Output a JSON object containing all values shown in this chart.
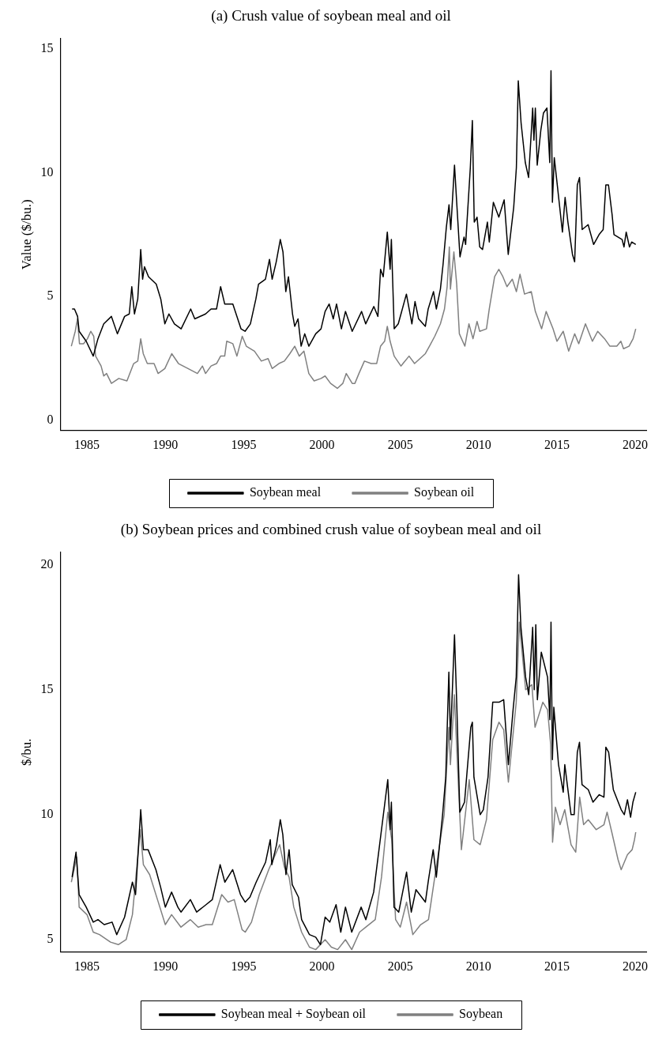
{
  "chart_data": [
    {
      "type": "line",
      "title": "(a) Crush value of soybean meal and oil",
      "ylabel": "Value ($/bu.)",
      "xlim": [
        1983.3,
        2020.7
      ],
      "xticks": [
        1985,
        1990,
        1995,
        2000,
        2005,
        2010,
        2015,
        2020
      ],
      "ylim": [
        -0.4,
        15.4
      ],
      "yticks": [
        0,
        5,
        10,
        15
      ],
      "grid": false,
      "legend": "bottom",
      "line_style": "solid",
      "marker": "none",
      "series": [
        {
          "name": "Soybean meal",
          "color": "#000000",
          "x": [
            1984.05,
            1984.2,
            1984.4,
            1984.5,
            1984.95,
            1985.4,
            1985.7,
            1986.07,
            1986.56,
            1986.94,
            1987.4,
            1987.7,
            1987.86,
            1988.03,
            1988.24,
            1988.43,
            1988.55,
            1988.67,
            1988.93,
            1989.42,
            1989.71,
            1989.97,
            1990.23,
            1990.58,
            1991.01,
            1991.62,
            1991.88,
            1992.57,
            1992.92,
            1993.27,
            1993.53,
            1993.79,
            1994.31,
            1994.83,
            1995.09,
            1995.43,
            1995.78,
            1995.95,
            1996.39,
            1996.65,
            1996.82,
            1997.08,
            1997.34,
            1997.51,
            1997.69,
            1997.86,
            1998.12,
            1998.26,
            1998.47,
            1998.67,
            1998.9,
            1999.16,
            1999.6,
            1999.94,
            2000.2,
            2000.46,
            2000.72,
            2000.93,
            2001.24,
            2001.5,
            2001.93,
            2002.53,
            2002.79,
            2003.31,
            2003.57,
            2003.74,
            2003.91,
            2004.17,
            2004.35,
            2004.43,
            2004.61,
            2004.87,
            2005.39,
            2005.74,
            2005.94,
            2006.17,
            2006.6,
            2006.78,
            2007.12,
            2007.3,
            2007.56,
            2007.73,
            2007.94,
            2008.11,
            2008.22,
            2008.46,
            2008.6,
            2008.81,
            2009.07,
            2009.17,
            2009.47,
            2009.6,
            2009.72,
            2009.9,
            2010.07,
            2010.25,
            2010.56,
            2010.68,
            2010.94,
            2011.29,
            2011.63,
            2011.89,
            2012.24,
            2012.41,
            2012.53,
            2012.71,
            2012.98,
            2013.19,
            2013.45,
            2013.53,
            2013.62,
            2013.74,
            2013.97,
            2014.14,
            2014.36,
            2014.54,
            2014.62,
            2014.71,
            2014.83,
            2015.09,
            2015.35,
            2015.52,
            2015.7,
            2015.99,
            2016.13,
            2016.3,
            2016.44,
            2016.61,
            2016.99,
            2017.34,
            2017.69,
            2017.95,
            2018.12,
            2018.29,
            2018.52,
            2018.64,
            2019.16,
            2019.28,
            2019.42,
            2019.63,
            2019.77,
            2020.03
          ],
          "values": [
            4.5,
            4.5,
            4.2,
            3.6,
            3.2,
            2.6,
            3.3,
            3.9,
            4.2,
            3.5,
            4.2,
            4.3,
            5.4,
            4.3,
            4.9,
            6.9,
            5.7,
            6.2,
            5.8,
            5.5,
            4.9,
            3.9,
            4.3,
            3.9,
            3.7,
            4.5,
            4.1,
            4.3,
            4.5,
            4.5,
            5.4,
            4.7,
            4.7,
            3.7,
            3.6,
            3.9,
            4.9,
            5.5,
            5.7,
            6.5,
            5.7,
            6.4,
            7.3,
            6.8,
            5.2,
            5.8,
            4.3,
            3.8,
            4.1,
            3.0,
            3.5,
            3.0,
            3.5,
            3.7,
            4.4,
            4.7,
            4.1,
            4.7,
            3.7,
            4.4,
            3.6,
            4.4,
            3.9,
            4.6,
            4.2,
            6.1,
            5.8,
            7.6,
            6.1,
            7.3,
            3.7,
            3.9,
            5.1,
            3.9,
            4.8,
            4.1,
            3.8,
            4.5,
            5.2,
            4.5,
            5.3,
            6.3,
            7.8,
            8.7,
            7.7,
            10.3,
            8.8,
            6.6,
            7.4,
            7.1,
            10.2,
            12.1,
            8.0,
            8.2,
            7.0,
            6.9,
            8.0,
            7.2,
            8.8,
            8.2,
            8.9,
            6.7,
            8.6,
            10.2,
            13.7,
            12.0,
            10.4,
            9.8,
            12.6,
            11.3,
            12.6,
            10.3,
            11.7,
            12.4,
            12.6,
            10.4,
            14.1,
            8.8,
            10.6,
            9.1,
            7.6,
            9.0,
            8.0,
            6.7,
            6.4,
            9.5,
            9.8,
            7.7,
            7.9,
            7.1,
            7.5,
            7.7,
            9.5,
            9.5,
            8.3,
            7.5,
            7.3,
            7.0,
            7.6,
            7.0,
            7.2,
            7.1
          ]
        },
        {
          "name": "Soybean oil",
          "color": "#808080",
          "x": [
            1984.0,
            1984.25,
            1984.39,
            1984.52,
            1984.78,
            1985.03,
            1985.24,
            1985.43,
            1985.55,
            1985.9,
            1986.07,
            1986.25,
            1986.56,
            1987.03,
            1987.55,
            1987.98,
            1988.24,
            1988.43,
            1988.59,
            1988.85,
            1989.28,
            1989.54,
            1989.97,
            1990.41,
            1990.84,
            1991.45,
            1992.05,
            1992.37,
            1992.57,
            1992.92,
            1993.27,
            1993.53,
            1993.79,
            1993.92,
            1994.31,
            1994.57,
            1994.91,
            1995.17,
            1995.69,
            1996.13,
            1996.56,
            1996.82,
            1997.25,
            1997.6,
            1997.95,
            1998.26,
            1998.55,
            1998.85,
            1999.16,
            1999.5,
            1999.94,
            2000.2,
            2000.55,
            2000.98,
            2001.33,
            2001.55,
            2001.93,
            2002.1,
            2002.36,
            2002.71,
            2003.14,
            2003.49,
            2003.74,
            2004.0,
            2004.17,
            2004.35,
            2004.61,
            2005.04,
            2005.56,
            2005.91,
            2006.6,
            2006.86,
            2007.2,
            2007.56,
            2007.82,
            2007.99,
            2008.13,
            2008.2,
            2008.42,
            2008.6,
            2008.77,
            2009.12,
            2009.38,
            2009.64,
            2009.9,
            2010.07,
            2010.5,
            2010.68,
            2011.02,
            2011.29,
            2011.55,
            2011.81,
            2012.15,
            2012.41,
            2012.64,
            2012.93,
            2013.36,
            2013.62,
            2014.02,
            2014.31,
            2014.75,
            2015.0,
            2015.4,
            2015.75,
            2016.13,
            2016.39,
            2016.82,
            2017.26,
            2017.6,
            2018.04,
            2018.38,
            2018.82,
            2019.08,
            2019.25,
            2019.6,
            2019.86,
            2020.03
          ],
          "values": [
            3.0,
            3.6,
            4.1,
            3.1,
            3.1,
            3.3,
            3.6,
            3.4,
            2.6,
            2.2,
            1.8,
            1.9,
            1.5,
            1.7,
            1.6,
            2.3,
            2.4,
            3.3,
            2.7,
            2.3,
            2.3,
            1.9,
            2.1,
            2.7,
            2.3,
            2.1,
            1.9,
            2.2,
            1.9,
            2.2,
            2.3,
            2.6,
            2.6,
            3.2,
            3.1,
            2.6,
            3.4,
            3.0,
            2.8,
            2.4,
            2.5,
            2.1,
            2.3,
            2.4,
            2.7,
            3.0,
            2.6,
            2.8,
            1.9,
            1.6,
            1.7,
            1.8,
            1.5,
            1.3,
            1.5,
            1.9,
            1.5,
            1.5,
            1.9,
            2.4,
            2.3,
            2.3,
            3.0,
            3.2,
            3.8,
            3.2,
            2.6,
            2.2,
            2.6,
            2.3,
            2.7,
            3.0,
            3.4,
            3.9,
            4.5,
            5.4,
            7.0,
            5.3,
            6.8,
            5.5,
            3.5,
            3.0,
            3.9,
            3.3,
            4.0,
            3.6,
            3.7,
            4.5,
            5.8,
            6.1,
            5.8,
            5.4,
            5.7,
            5.2,
            5.9,
            5.1,
            5.2,
            4.4,
            3.7,
            4.4,
            3.7,
            3.2,
            3.6,
            2.8,
            3.5,
            3.1,
            3.9,
            3.2,
            3.6,
            3.3,
            3.0,
            3.0,
            3.2,
            2.9,
            3.0,
            3.3,
            3.7
          ]
        }
      ]
    },
    {
      "type": "line",
      "title": "(b) Soybean prices and combined crush value of soybean meal and oil",
      "ylabel": "$/bu.",
      "xlim": [
        1983.3,
        2020.7
      ],
      "xticks": [
        1985,
        1990,
        1995,
        2000,
        2005,
        2010,
        2015,
        2020
      ],
      "ylim": [
        4.5,
        20.5
      ],
      "yticks": [
        5,
        10,
        15,
        20
      ],
      "grid": false,
      "legend": "bottom",
      "line_style": "solid",
      "marker": "none",
      "series": [
        {
          "name": "Soybean meal + Soybean oil",
          "color": "#000000",
          "x": [
            1984.05,
            1984.3,
            1984.5,
            1984.95,
            1985.4,
            1985.7,
            1986.1,
            1986.6,
            1986.9,
            1987.4,
            1987.9,
            1988.1,
            1988.43,
            1988.6,
            1988.9,
            1989.4,
            1989.7,
            1990.0,
            1990.4,
            1990.8,
            1991.0,
            1991.6,
            1992.0,
            1992.6,
            1993.0,
            1993.5,
            1993.8,
            1994.3,
            1994.8,
            1995.1,
            1995.4,
            1995.8,
            1996.4,
            1996.7,
            1996.8,
            1997.1,
            1997.34,
            1997.5,
            1997.7,
            1997.9,
            1998.1,
            1998.5,
            1998.7,
            1999.2,
            1999.6,
            1999.9,
            2000.2,
            2000.5,
            2000.9,
            2001.2,
            2001.5,
            2001.9,
            2002.5,
            2002.8,
            2003.3,
            2003.7,
            2004.2,
            2004.35,
            2004.43,
            2004.6,
            2004.9,
            2005.4,
            2005.7,
            2006.0,
            2006.6,
            2006.8,
            2007.1,
            2007.3,
            2007.7,
            2007.9,
            2008.1,
            2008.2,
            2008.46,
            2008.6,
            2008.8,
            2009.1,
            2009.5,
            2009.6,
            2009.7,
            2010.1,
            2010.3,
            2010.6,
            2010.9,
            2011.3,
            2011.6,
            2011.9,
            2012.2,
            2012.4,
            2012.55,
            2012.7,
            2013.0,
            2013.2,
            2013.45,
            2013.55,
            2013.65,
            2013.75,
            2014.0,
            2014.4,
            2014.55,
            2014.62,
            2014.71,
            2014.8,
            2015.1,
            2015.4,
            2015.5,
            2015.9,
            2016.1,
            2016.3,
            2016.44,
            2016.6,
            2017.0,
            2017.3,
            2017.7,
            2018.0,
            2018.12,
            2018.3,
            2018.6,
            2019.1,
            2019.3,
            2019.5,
            2019.7,
            2019.85,
            2020.03
          ],
          "values": [
            7.5,
            8.5,
            6.8,
            6.3,
            5.7,
            5.8,
            5.6,
            5.7,
            5.2,
            5.9,
            7.3,
            6.8,
            10.2,
            8.6,
            8.6,
            7.8,
            7.1,
            6.3,
            6.9,
            6.3,
            6.1,
            6.6,
            6.1,
            6.4,
            6.6,
            8.0,
            7.3,
            7.8,
            6.8,
            6.5,
            6.7,
            7.3,
            8.1,
            9.0,
            8.0,
            8.8,
            9.8,
            9.2,
            7.6,
            8.6,
            7.2,
            6.7,
            5.8,
            5.2,
            5.1,
            4.8,
            5.9,
            5.7,
            6.4,
            5.3,
            6.3,
            5.3,
            6.3,
            5.8,
            6.9,
            8.9,
            11.4,
            9.4,
            10.5,
            6.3,
            6.1,
            7.7,
            6.1,
            7.0,
            6.5,
            7.4,
            8.6,
            7.5,
            10.0,
            11.5,
            15.7,
            13.0,
            17.2,
            14.5,
            10.1,
            10.5,
            13.5,
            13.7,
            11.5,
            10.0,
            10.2,
            11.5,
            14.5,
            14.5,
            14.6,
            12.0,
            14.2,
            15.5,
            19.6,
            17.5,
            15.5,
            14.8,
            17.5,
            15.0,
            17.6,
            14.6,
            16.5,
            15.5,
            13.8,
            17.7,
            12.2,
            14.3,
            12.0,
            10.9,
            12.0,
            10.0,
            10.0,
            12.5,
            12.9,
            11.2,
            11.0,
            10.5,
            10.8,
            10.7,
            12.7,
            12.5,
            11.0,
            10.2,
            10.0,
            10.6,
            9.9,
            10.5,
            10.9
          ]
        },
        {
          "name": "Soybean",
          "color": "#808080",
          "x": [
            1984.0,
            1984.35,
            1984.5,
            1985.0,
            1985.4,
            1985.8,
            1986.5,
            1987.0,
            1987.5,
            1987.9,
            1988.4,
            1988.6,
            1989.0,
            1989.5,
            1990.0,
            1990.4,
            1991.0,
            1991.6,
            1992.1,
            1992.6,
            1993.0,
            1993.6,
            1994.0,
            1994.4,
            1994.9,
            1995.1,
            1995.5,
            1996.0,
            1996.6,
            1997.3,
            1997.6,
            1997.9,
            1998.2,
            1998.7,
            1999.2,
            1999.6,
            2000.2,
            2000.6,
            2001.0,
            2001.5,
            2001.9,
            2002.4,
            2002.8,
            2003.4,
            2003.8,
            2004.2,
            2004.45,
            2004.7,
            2005.0,
            2005.4,
            2005.8,
            2006.3,
            2006.8,
            2007.2,
            2007.8,
            2008.1,
            2008.2,
            2008.45,
            2008.65,
            2008.9,
            2009.4,
            2009.7,
            2010.1,
            2010.5,
            2010.9,
            2011.3,
            2011.6,
            2011.9,
            2012.4,
            2012.6,
            2013.0,
            2013.4,
            2013.6,
            2014.1,
            2014.4,
            2014.6,
            2014.72,
            2014.9,
            2015.2,
            2015.5,
            2015.9,
            2016.2,
            2016.45,
            2016.7,
            2017.0,
            2017.5,
            2018.0,
            2018.2,
            2018.5,
            2018.9,
            2019.1,
            2019.5,
            2019.8,
            2019.95,
            2020.03
          ],
          "values": [
            7.3,
            8.3,
            6.3,
            6.0,
            5.3,
            5.2,
            4.9,
            4.8,
            5.0,
            6.0,
            9.4,
            8.0,
            7.6,
            6.6,
            5.6,
            6.0,
            5.5,
            5.8,
            5.5,
            5.6,
            5.6,
            6.8,
            6.5,
            6.6,
            5.4,
            5.3,
            5.7,
            6.8,
            7.8,
            8.8,
            7.9,
            7.5,
            6.3,
            5.3,
            4.7,
            4.6,
            5.0,
            4.7,
            4.6,
            5.0,
            4.6,
            5.3,
            5.5,
            5.8,
            7.5,
            10.1,
            9.0,
            5.8,
            5.5,
            6.5,
            5.2,
            5.6,
            5.8,
            7.5,
            10.0,
            13.5,
            12.0,
            14.8,
            12.0,
            8.6,
            11.4,
            9.0,
            8.8,
            9.8,
            13.0,
            13.7,
            13.4,
            11.3,
            14.5,
            17.7,
            15.0,
            15.2,
            13.5,
            14.5,
            14.2,
            12.8,
            8.9,
            10.3,
            9.6,
            10.2,
            8.8,
            8.5,
            10.7,
            9.6,
            9.8,
            9.4,
            9.6,
            10.1,
            9.3,
            8.2,
            7.8,
            8.4,
            8.6,
            9.0,
            9.3
          ]
        }
      ]
    }
  ]
}
